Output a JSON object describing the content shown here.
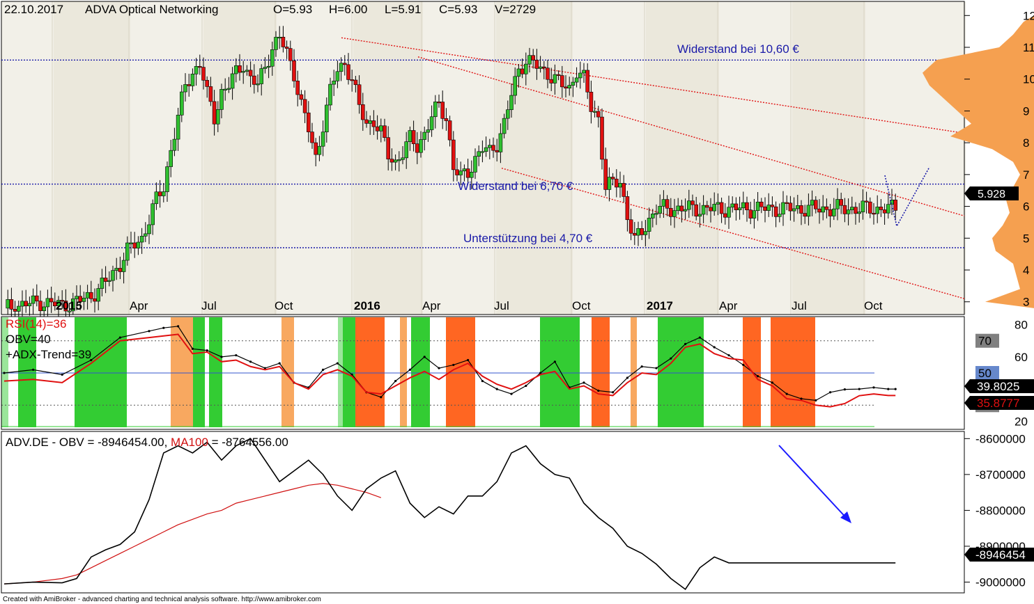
{
  "header": {
    "date": "22.10.2017",
    "name": "ADVA Optical Networking",
    "open": "O=5.93",
    "high": "H=6.00",
    "low": "L=5.91",
    "close": "C=5.93",
    "volume": "V=2729"
  },
  "colors": {
    "up": "#2fbf2f",
    "down": "#e01010",
    "support_line": "#1a1aa8",
    "channel_line": "#e01010",
    "profile": "#f5a050",
    "rsi_line": "#e01010",
    "obv_line": "#000000",
    "ma_line": "#d01010",
    "zone_green": "#33cc33",
    "zone_lightgreen": "#9ae69a",
    "zone_orange": "#ff6622",
    "zone_lightorange": "#f8a860"
  },
  "annotations": {
    "resistance_high": "Widerstand bei 10,60 €",
    "resistance_low": "Widerstand bei 6,70 €",
    "support": "Unterstützung bei 4,70 €"
  },
  "time_axis": [
    "2015",
    "Apr",
    "Jul",
    "Oct",
    "2016",
    "Apr",
    "Jul",
    "Oct",
    "2017",
    "Apr",
    "Jul",
    "Oct"
  ],
  "chart_data": [
    {
      "type": "candlestick",
      "title": "22.10.2017 ADVA Optical Networking",
      "ylim": [
        2.6,
        12.4
      ],
      "y_ticks": [
        "3",
        "4",
        "5",
        "6",
        "7",
        "8",
        "9",
        "10",
        "11",
        "12"
      ],
      "last_price": "5.928",
      "levels": [
        {
          "label": "Widerstand bei 10,60 €",
          "value": 10.6
        },
        {
          "label": "Widerstand bei 6,70 €",
          "value": 6.7
        },
        {
          "label": "Unterstützung bei 4,70 €",
          "value": 4.7
        }
      ],
      "close_path_weeks": [
        0,
        5,
        10,
        12,
        16,
        20,
        24,
        28,
        30,
        32,
        34,
        36,
        38,
        40,
        42,
        44,
        46,
        48,
        50,
        52,
        54,
        56,
        58,
        60,
        62,
        64,
        66,
        68,
        70,
        72,
        74,
        76,
        78,
        80,
        82,
        84,
        86,
        88,
        90,
        92,
        94,
        96,
        98,
        100,
        102,
        104,
        106,
        108,
        110,
        112,
        114,
        116,
        118,
        120,
        122,
        124,
        126,
        128,
        130,
        132,
        134,
        136,
        138,
        140,
        142,
        144,
        146,
        148,
        150,
        152,
        154,
        156,
        158,
        160,
        162,
        164,
        166,
        168,
        170,
        172,
        174,
        176,
        178,
        180,
        182,
        184,
        186,
        188,
        190,
        192,
        194,
        196,
        198,
        200,
        202,
        204,
        206,
        208,
        210,
        212,
        214,
        216,
        218,
        220,
        222,
        224,
        226,
        228,
        230,
        232,
        235,
        238,
        241,
        244,
        246
      ],
      "close_path": [
        2.8,
        2.9,
        3.0,
        2.95,
        2.9,
        3.0,
        3.2,
        3.6,
        3.9,
        4.2,
        4.6,
        4.8,
        5.0,
        5.6,
        6.2,
        6.6,
        7.8,
        8.8,
        9.8,
        10.2,
        10.5,
        9.5,
        8.8,
        9.6,
        9.8,
        10.2,
        10.5,
        10.0,
        9.8,
        10.4,
        11.0,
        11.3,
        10.8,
        10.2,
        9.2,
        8.4,
        7.5,
        8.6,
        9.6,
        10.3,
        10.5,
        10.0,
        9.1,
        8.6,
        8.7,
        8.3,
        7.6,
        7.4,
        7.7,
        8.1,
        7.9,
        8.3,
        8.8,
        9.2,
        8.8,
        7.2,
        6.9,
        7.1,
        7.5,
        7.8,
        7.7,
        8.0,
        8.6,
        9.5,
        10.3,
        10.6,
        10.5,
        10.3,
        10.2,
        10.0,
        9.8,
        9.7,
        10.3,
        10.0,
        9.1,
        8.8,
        6.6,
        6.7,
        6.8,
        5.7,
        4.9,
        5.2,
        5.6,
        5.928,
        5.928,
        5.928,
        5.928,
        5.928,
        5.928,
        5.928,
        5.928,
        5.928,
        5.928,
        5.928,
        5.928,
        5.928,
        5.928,
        5.928,
        5.928,
        5.928,
        5.928,
        5.928,
        5.928,
        5.928,
        5.928,
        5.928,
        5.928,
        5.928,
        5.928,
        5.928,
        5.928,
        5.928,
        5.928,
        5.928,
        5.928
      ]
    },
    {
      "type": "line",
      "series": [
        {
          "name": "RSI(14)=36",
          "last": "35.8777"
        },
        {
          "name": "OBV=40",
          "last": "39.8025"
        },
        {
          "name": "+ADX-Trend=39"
        }
      ],
      "ylim": [
        15,
        85
      ],
      "y_ticks": [
        "20",
        "40",
        "60",
        "80"
      ],
      "levels": [
        "70",
        "50",
        "30"
      ],
      "rsi_weeks": [
        0,
        8,
        16,
        24,
        32,
        40,
        44,
        48,
        52,
        56,
        60,
        64,
        68,
        72,
        76,
        80,
        84,
        88,
        92,
        96,
        100,
        104,
        108,
        112,
        116,
        120,
        124,
        128,
        132,
        136,
        140,
        144,
        148,
        152,
        156,
        160,
        164,
        168,
        172,
        176,
        180,
        184,
        188,
        192,
        196,
        200,
        204,
        208,
        212,
        216,
        220,
        224,
        228,
        232,
        236,
        240,
        244,
        246
      ],
      "rsi": [
        45,
        46,
        44,
        56,
        70,
        72,
        73,
        74,
        62,
        63,
        57,
        58,
        54,
        52,
        54,
        44,
        40,
        49,
        52,
        48,
        38,
        37,
        42,
        47,
        51,
        46,
        52,
        56,
        48,
        43,
        40,
        44,
        49,
        51,
        40,
        42,
        37,
        36,
        44,
        50,
        49,
        56,
        66,
        68,
        62,
        59,
        58,
        46,
        42,
        34,
        33,
        30,
        29,
        31,
        35.8777,
        37,
        36,
        36
      ],
      "obv_osc": [
        50,
        52,
        49,
        58,
        72,
        76,
        78,
        79,
        65,
        64,
        60,
        61,
        57,
        53,
        56,
        44,
        41,
        52,
        56,
        49,
        38,
        35,
        45,
        52,
        60,
        53,
        55,
        58,
        45,
        40,
        37,
        42,
        50,
        57,
        41,
        44,
        39,
        38,
        47,
        54,
        53,
        59,
        68,
        72,
        66,
        61,
        55,
        48,
        44,
        37,
        34,
        33,
        38,
        39.8025,
        40,
        41,
        40,
        40
      ]
    },
    {
      "type": "line",
      "title": "ADV.DE - OBV = -8946454.00, MA100 = -8764556.00",
      "series": [
        {
          "name": "OBV",
          "last": "-8946454"
        },
        {
          "name": "MA100",
          "last": "-8764556"
        }
      ],
      "ylim": [
        -9030000,
        -8580000
      ],
      "y_ticks": [
        "-8600000",
        "-8700000",
        "-8800000",
        "-8900000",
        "-9000000"
      ],
      "obv_weeks": [
        0,
        8,
        16,
        20,
        24,
        28,
        32,
        36,
        40,
        44,
        48,
        52,
        56,
        60,
        64,
        68,
        72,
        76,
        80,
        84,
        88,
        92,
        96,
        100,
        104,
        108,
        112,
        116,
        120,
        124,
        128,
        132,
        136,
        140,
        144,
        148,
        152,
        156,
        160,
        164,
        168,
        172,
        176,
        180,
        184,
        188,
        192,
        196,
        200,
        204,
        208,
        212,
        216,
        220,
        224,
        228,
        232,
        236,
        240,
        244,
        246
      ],
      "obv": [
        -9005000,
        -9000000,
        -9002000,
        -8990000,
        -8930000,
        -8910000,
        -8895000,
        -8860000,
        -8770000,
        -8640000,
        -8620000,
        -8640000,
        -8610000,
        -8660000,
        -8620000,
        -8600000,
        -8660000,
        -8720000,
        -8690000,
        -8660000,
        -8700000,
        -8760000,
        -8800000,
        -8740000,
        -8710000,
        -8690000,
        -8780000,
        -8820000,
        -8790000,
        -8810000,
        -8760000,
        -8760000,
        -8720000,
        -8640000,
        -8620000,
        -8670000,
        -8700000,
        -8710000,
        -8780000,
        -8820000,
        -8850000,
        -8900000,
        -8920000,
        -8950000,
        -8990000,
        -9020000,
        -8960000,
        -8930000,
        -8946454,
        -8946454,
        -8946454,
        -8946454,
        -8946454,
        -8946454,
        -8946454,
        -8946454,
        -8946454,
        -8946454,
        -8946454,
        -8946454,
        -8946454
      ],
      "ma100": [
        -9005000,
        -9000000,
        -8990000,
        -8980000,
        -8960000,
        -8940000,
        -8920000,
        -8900000,
        -8880000,
        -8860000,
        -8840000,
        -8825000,
        -8810000,
        -8800000,
        -8780000,
        -8770000,
        -8760000,
        -8750000,
        -8740000,
        -8730000,
        -8725000,
        -8730000,
        -8740000,
        -8750000,
        -8764556,
        -8764556,
        -8764556,
        -8764556,
        -8764556,
        -8764556,
        -8764556,
        -8764556,
        -8764556,
        -8764556,
        -8764556,
        -8764556,
        -8764556,
        -8764556,
        -8764556,
        -8764556,
        -8764556,
        -8764556,
        -8764556,
        -8764556,
        -8764556,
        -8764556,
        -8764556,
        -8764556,
        -8764556,
        -8764556,
        -8764556,
        -8764556,
        -8764556,
        -8764556,
        -8764556,
        -8764556,
        -8764556,
        -8764556,
        -8764556,
        -8764556,
        -8764556
      ]
    }
  ],
  "footer": "Created with AmiBroker - advanced charting and technical analysis software. http://www.amibroker.com"
}
